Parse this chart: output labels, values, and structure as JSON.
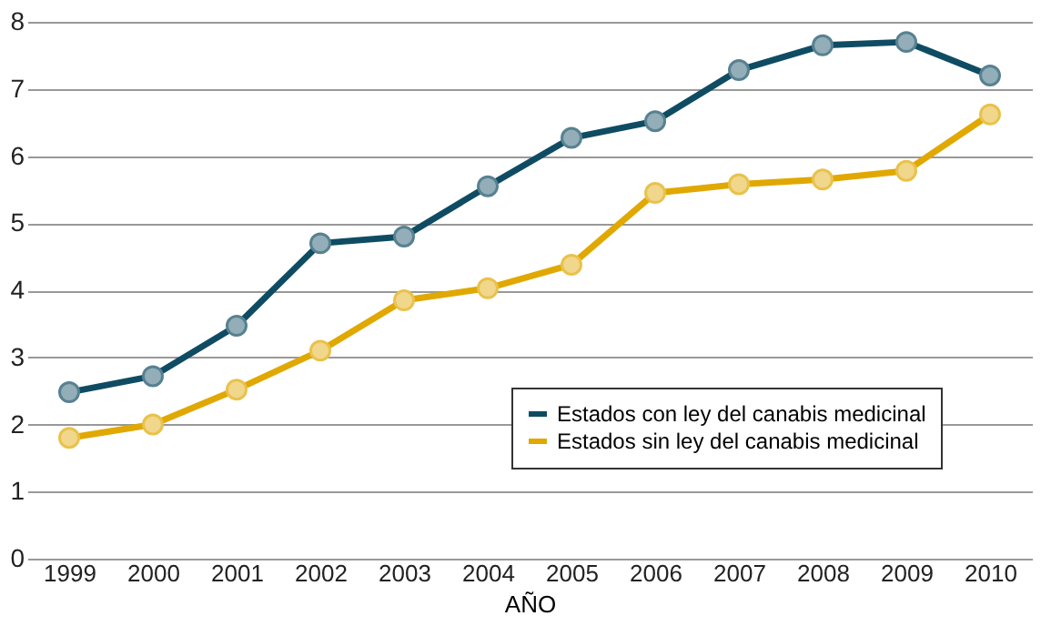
{
  "chart_data": {
    "type": "line",
    "xlabel": "AÑO",
    "categories": [
      "1999",
      "2000",
      "2001",
      "2002",
      "2003",
      "2004",
      "2005",
      "2006",
      "2007",
      "2008",
      "2009",
      "2010"
    ],
    "series": [
      {
        "name": "Estados con ley del canabis medicinal",
        "color": "#0f4c63",
        "values": [
          2.48,
          2.72,
          3.47,
          4.7,
          4.8,
          5.55,
          6.27,
          6.52,
          7.28,
          7.65,
          7.7,
          7.2
        ]
      },
      {
        "name": "Estados sin ley del canabis medicinal",
        "color": "#e0a800",
        "values": [
          1.8,
          2.0,
          2.52,
          3.1,
          3.85,
          4.03,
          4.38,
          5.45,
          5.58,
          5.65,
          5.78,
          6.62
        ]
      }
    ],
    "ylim": [
      0,
      8
    ],
    "yticks": [
      0,
      1,
      2,
      3,
      4,
      5,
      6,
      7,
      8
    ],
    "grid": "y",
    "legend": "bottom right",
    "marker": "circle",
    "line_style": "solid"
  }
}
